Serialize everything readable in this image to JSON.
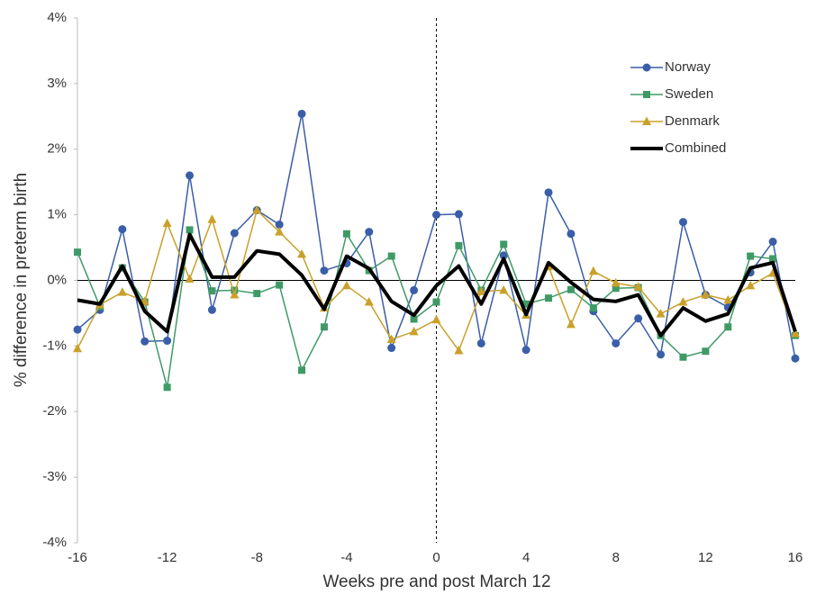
{
  "chart_data": {
    "type": "line",
    "xlabel": "Weeks pre and post March 12",
    "ylabel": "% difference in preterm birth",
    "x": [
      -16,
      -15,
      -14,
      -13,
      -12,
      -11,
      -10,
      -9,
      -8,
      -7,
      -6,
      -5,
      -4,
      -3,
      -2,
      -1,
      0,
      1,
      2,
      3,
      4,
      5,
      6,
      7,
      8,
      9,
      10,
      11,
      12,
      13,
      14,
      15,
      16
    ],
    "xlim": [
      -16,
      16
    ],
    "xticks": [
      -16,
      -12,
      -8,
      -4,
      0,
      4,
      8,
      12,
      16
    ],
    "ylim": [
      -4,
      4
    ],
    "yticks": [
      {
        "value": -4,
        "label": "-4%"
      },
      {
        "value": -3,
        "label": "-3%"
      },
      {
        "value": -2,
        "label": "-2%"
      },
      {
        "value": -1,
        "label": "-1%"
      },
      {
        "value": 0,
        "label": "0%"
      },
      {
        "value": 1,
        "label": "1%"
      },
      {
        "value": 2,
        "label": "2%"
      },
      {
        "value": 3,
        "label": "3%"
      },
      {
        "value": 4,
        "label": "4%"
      }
    ],
    "legend": "upper right",
    "series": [
      {
        "name": "Norway",
        "color": "#3a5ea8",
        "marker": "circle",
        "width": 1.5,
        "values": [
          -0.75,
          -0.45,
          0.78,
          -0.93,
          -0.92,
          1.6,
          -0.45,
          0.72,
          1.07,
          0.85,
          2.54,
          0.15,
          0.26,
          0.74,
          -1.03,
          -0.15,
          1.0,
          1.01,
          -0.96,
          0.38,
          -1.06,
          1.34,
          0.71,
          -0.47,
          -0.96,
          -0.58,
          -1.13,
          0.89,
          -0.22,
          -0.41,
          0.12,
          0.59,
          -1.19
        ]
      },
      {
        "name": "Sweden",
        "color": "#3f9a66",
        "marker": "square",
        "width": 1.5,
        "values": [
          0.43,
          -0.4,
          0.19,
          -0.33,
          -1.63,
          0.77,
          -0.16,
          -0.15,
          -0.2,
          -0.07,
          -1.37,
          -0.71,
          0.71,
          0.15,
          0.37,
          -0.59,
          -0.33,
          0.53,
          -0.15,
          0.55,
          -0.36,
          -0.27,
          -0.14,
          -0.42,
          -0.12,
          -0.11,
          -0.84,
          -1.17,
          -1.08,
          -0.71,
          0.37,
          0.33,
          -0.84
        ]
      },
      {
        "name": "Denmark",
        "color": "#c9a02a",
        "marker": "triangle",
        "width": 1.5,
        "values": [
          -1.04,
          -0.37,
          -0.18,
          -0.32,
          0.87,
          0.02,
          0.93,
          -0.22,
          1.07,
          0.74,
          0.4,
          -0.42,
          -0.08,
          -0.33,
          -0.9,
          -0.78,
          -0.6,
          -1.07,
          -0.17,
          -0.15,
          -0.53,
          0.21,
          -0.67,
          0.14,
          -0.04,
          -0.1,
          -0.51,
          -0.33,
          -0.22,
          -0.3,
          -0.08,
          0.11,
          -0.81
        ]
      },
      {
        "name": "Combined",
        "color": "#000000",
        "marker": "none",
        "width": 4,
        "values": [
          -0.3,
          -0.36,
          0.22,
          -0.47,
          -0.78,
          0.7,
          0.05,
          0.05,
          0.45,
          0.4,
          0.08,
          -0.44,
          0.37,
          0.18,
          -0.32,
          -0.53,
          -0.08,
          0.22,
          -0.36,
          0.33,
          -0.52,
          0.27,
          -0.03,
          -0.29,
          -0.32,
          -0.22,
          -0.84,
          -0.42,
          -0.62,
          -0.51,
          0.19,
          0.27,
          -0.78
        ]
      }
    ]
  }
}
